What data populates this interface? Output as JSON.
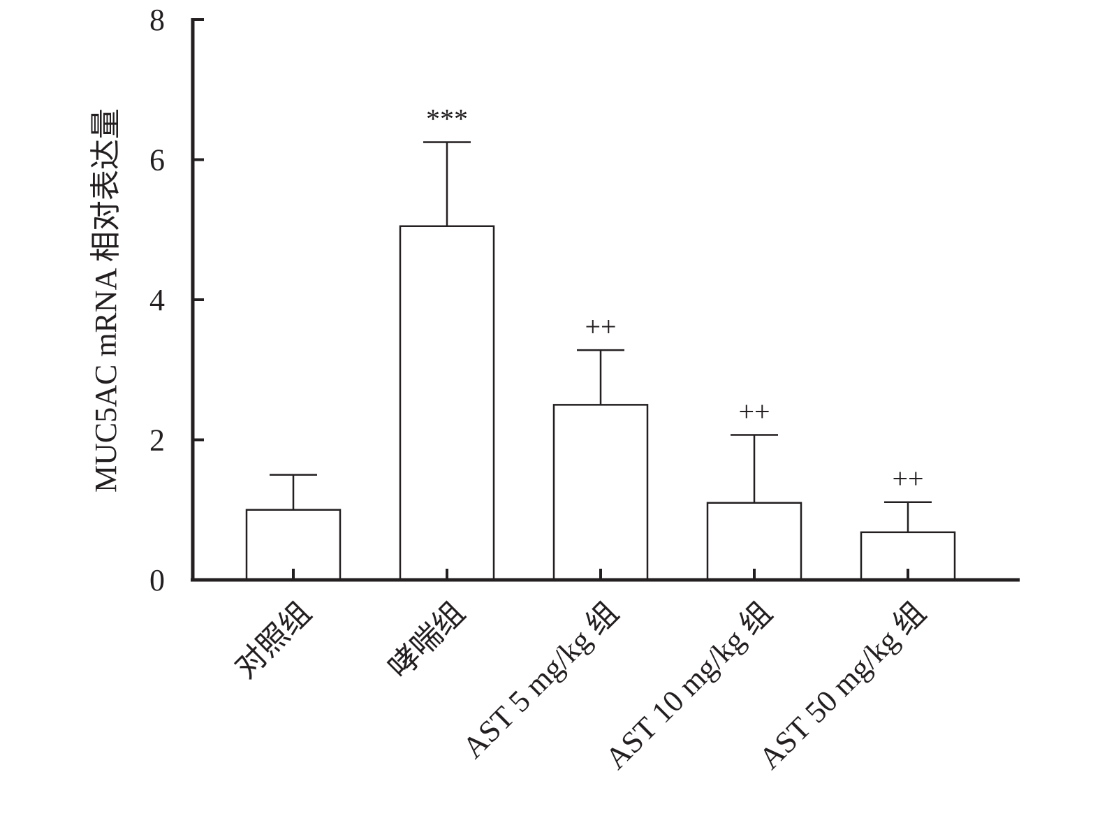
{
  "chart_data": {
    "type": "bar",
    "title": "",
    "xlabel": "",
    "ylabel": "MUC5AC mRNA 相对表达量",
    "ylim": [
      0,
      8
    ],
    "yticks": [
      0,
      2,
      4,
      6,
      8
    ],
    "categories": [
      "对照组",
      "哮喘组",
      "AST 5 mg/kg 组",
      "AST 10 mg/kg 组",
      "AST 50 mg/kg 组"
    ],
    "values": [
      1.0,
      5.05,
      2.5,
      1.1,
      0.68
    ],
    "errors": [
      0.5,
      1.2,
      0.78,
      0.97,
      0.43
    ],
    "significance": [
      "",
      "***",
      "++",
      "++",
      "++"
    ],
    "grid": false,
    "bar_fill": "#ffffff",
    "line_color": "#231f20"
  }
}
